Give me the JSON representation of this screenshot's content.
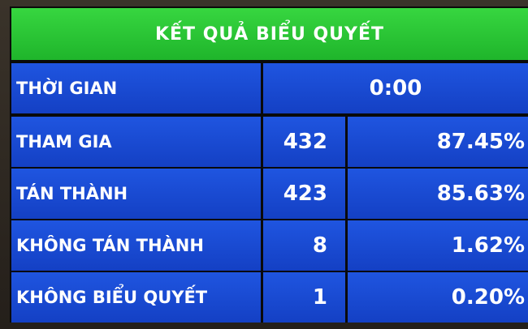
{
  "header": {
    "title": "KẾT QUẢ BIỂU QUYẾT"
  },
  "table": {
    "rows": [
      [
        "THỜI GIAN",
        "0:00"
      ],
      [
        "THAM GIA",
        "432",
        "87.45%"
      ],
      [
        "TÁN THÀNH",
        "423",
        "85.63%"
      ],
      [
        "KHÔNG TÁN THÀNH",
        "8",
        "1.62%"
      ],
      [
        "KHÔNG BIỂU QUYẾT",
        "1",
        "0.20%"
      ]
    ]
  }
}
